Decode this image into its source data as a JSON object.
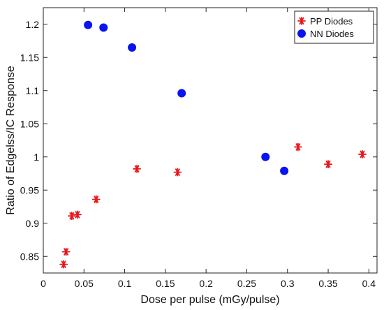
{
  "chart_data": {
    "type": "scatter",
    "xlabel": "Dose per pulse (mGy/pulse)",
    "ylabel": "Ratio of Edgelss/IC Response",
    "xlim": [
      0,
      0.41
    ],
    "ylim": [
      0.825,
      1.225
    ],
    "xticks": [
      0,
      0.05,
      0.1,
      0.15,
      0.2,
      0.25,
      0.3,
      0.35,
      0.4
    ],
    "xtick_labels": [
      "0",
      "0.05",
      "0.1",
      "0.15",
      "0.2",
      "0.25",
      "0.3",
      "0.35",
      "0.4"
    ],
    "yticks": [
      0.85,
      0.9,
      0.95,
      1.0,
      1.05,
      1.1,
      1.15,
      1.2
    ],
    "ytick_labels": [
      "0.85",
      "0.9",
      "0.95",
      "1",
      "1.05",
      "1.1",
      "1.15",
      "1.2"
    ],
    "grid": false,
    "legend_position": "top-right",
    "series": [
      {
        "name": "PP Diodes",
        "marker": "asterisk",
        "color": "#e8141b",
        "x": [
          0.025,
          0.028,
          0.035,
          0.042,
          0.065,
          0.115,
          0.165,
          0.313,
          0.35,
          0.392
        ],
        "y": [
          0.838,
          0.857,
          0.911,
          0.913,
          0.936,
          0.982,
          0.977,
          1.015,
          0.989,
          1.004
        ]
      },
      {
        "name": "NN Diodes",
        "marker": "circle",
        "color": "#0a14f0",
        "x": [
          0.055,
          0.074,
          0.109,
          0.17,
          0.273,
          0.296
        ],
        "y": [
          1.199,
          1.195,
          1.165,
          1.096,
          1.0,
          0.979
        ]
      }
    ]
  }
}
